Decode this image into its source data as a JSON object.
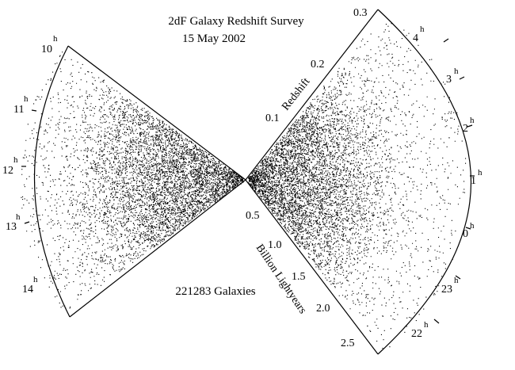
{
  "title": {
    "line1": "2dF Galaxy Redshift Survey",
    "line2": "15 May 2002"
  },
  "galaxy_count_label": "221283 Galaxies",
  "redshift_axis": {
    "label": "Redshift",
    "ticks": [
      "0.1",
      "0.2",
      "0.3"
    ]
  },
  "distance_axis": {
    "label": "Billion Lightyears",
    "ticks": [
      "0.5",
      "1.0",
      "1.5",
      "2.0",
      "2.5"
    ]
  },
  "hours_superscript": "h",
  "left_wedge_hours": [
    "10",
    "11",
    "12",
    "13",
    "14"
  ],
  "right_wedge_hours": [
    "4",
    "3",
    "2",
    "1",
    "0",
    "23",
    "22"
  ],
  "colors": {
    "points": "#000000",
    "background": "#ffffff",
    "outline": "#000000"
  }
}
